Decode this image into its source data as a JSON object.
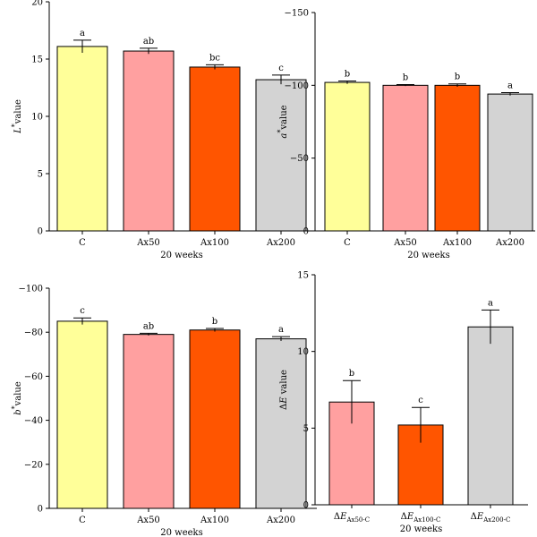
{
  "chart_data": [
    {
      "type": "bar",
      "categories": [
        "C",
        "Ax50",
        "Ax100",
        "Ax200"
      ],
      "values": [
        16.1,
        15.7,
        14.3,
        13.2
      ],
      "errors": [
        0.55,
        0.25,
        0.2,
        0.4
      ],
      "significance": [
        "a",
        "ab",
        "bc",
        "c"
      ],
      "ylabel_symbol": "L",
      "ylabel_sup": "*",
      "ylabel_text": "value",
      "xlabel": "20 weeks",
      "ylim": [
        0,
        20
      ],
      "yticks": [
        0,
        5,
        10,
        15,
        20
      ],
      "ytick_labels": [
        "0",
        "5",
        "10",
        "15",
        "20"
      ],
      "colors": [
        "#FFFF99",
        "#FFA0A0",
        "#FF5500",
        "#D3D3D3"
      ],
      "grid": false
    },
    {
      "type": "bar",
      "categories": [
        "C",
        "Ax50",
        "Ax100",
        "Ax200"
      ],
      "values": [
        -102,
        -100,
        -100,
        -94
      ],
      "errors": [
        1.0,
        0.5,
        1.0,
        1.0
      ],
      "significance": [
        "b",
        "b",
        "b",
        "a"
      ],
      "ylabel_symbol": "a",
      "ylabel_sup": "*",
      "ylabel_text": "value",
      "xlabel": "20 weeks",
      "ylim": [
        0,
        -150
      ],
      "yticks": [
        0,
        -50,
        -100,
        -150
      ],
      "ytick_labels": [
        "0",
        "−50",
        "−100",
        "−150"
      ],
      "colors": [
        "#FFFF99",
        "#FFA0A0",
        "#FF5500",
        "#D3D3D3"
      ],
      "grid": false
    },
    {
      "type": "bar",
      "categories": [
        "C",
        "Ax50",
        "Ax100",
        "Ax200"
      ],
      "values": [
        -85,
        -79,
        -81,
        -77
      ],
      "errors": [
        1.5,
        0.5,
        0.7,
        1.0
      ],
      "significance": [
        "c",
        "ab",
        "b",
        "a"
      ],
      "ylabel_symbol": "b",
      "ylabel_sup": "*",
      "ylabel_text": "value",
      "xlabel": "20 weeks",
      "ylim": [
        0,
        -100
      ],
      "yticks": [
        0,
        -20,
        -40,
        -60,
        -80,
        -100
      ],
      "ytick_labels": [
        "0",
        "−20",
        "−40",
        "−60",
        "−80",
        "−100"
      ],
      "colors": [
        "#FFFF99",
        "#FFA0A0",
        "#FF5500",
        "#D3D3D3"
      ],
      "grid": false
    },
    {
      "type": "bar",
      "categories": [
        "ΔE",
        "ΔE",
        "ΔE"
      ],
      "category_subs": [
        "Ax50-C",
        "Ax100-C",
        "Ax200-C"
      ],
      "values": [
        6.7,
        5.2,
        11.6
      ],
      "errors": [
        1.4,
        1.15,
        1.1
      ],
      "significance": [
        "b",
        "c",
        "a"
      ],
      "ylabel_symbol": "ΔE",
      "ylabel_sup": "",
      "ylabel_text": " value",
      "xlabel": "20 weeks",
      "ylim": [
        0,
        15
      ],
      "yticks": [
        0,
        5,
        10,
        15
      ],
      "ytick_labels": [
        "0",
        "5",
        "10",
        "15"
      ],
      "colors": [
        "#FFA0A0",
        "#FF5500",
        "#D3D3D3"
      ],
      "grid": false
    }
  ]
}
